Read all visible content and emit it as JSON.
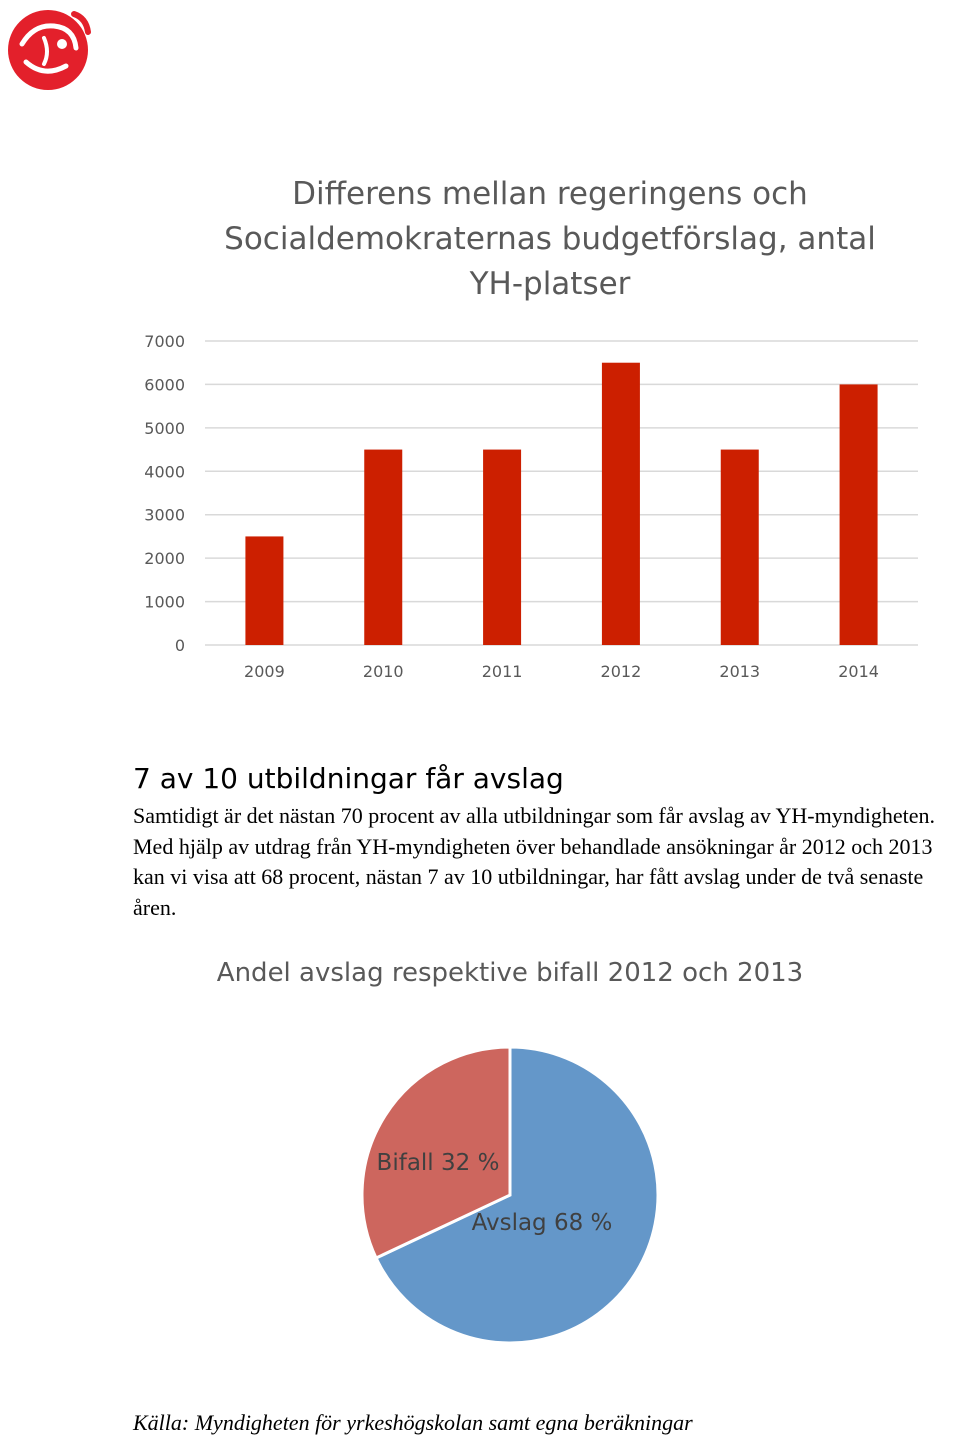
{
  "brand": {
    "logo": "rose-logo-icon",
    "logo_color": "#e3202b"
  },
  "chart_data": [
    {
      "type": "bar",
      "title": "Differens mellan regeringens och\nSocialdemokraternas budgetförslag, antal\nYH-platser",
      "categories": [
        "2009",
        "2010",
        "2011",
        "2012",
        "2013",
        "2014"
      ],
      "values": [
        2500,
        4500,
        4500,
        6500,
        4500,
        6000
      ],
      "ylim": [
        0,
        7000
      ],
      "yticks": [
        "0",
        "1000",
        "2000",
        "3000",
        "4000",
        "5000",
        "6000",
        "7000"
      ],
      "xlabel": "",
      "ylabel": "",
      "grid": true,
      "legend": "none",
      "bar_color": "#cc1f00"
    },
    {
      "type": "pie",
      "title": "Andel avslag respektive bifall 2012 och 2013",
      "slices": [
        {
          "label": "Avslag 68 %",
          "value": 68,
          "color": "#6497c9"
        },
        {
          "label": "Bifall 32 %",
          "value": 32,
          "color": "#cd665e"
        }
      ]
    }
  ],
  "section": {
    "heading": "7 av 10 utbildningar får avslag",
    "body": "Samtidigt är det nästan 70 procent av alla utbildningar som får avslag av YH-myndigheten. Med hjälp av utdrag från YH-myndigheten över behandlade ansökningar år 2012 och 2013 kan vi visa att 68 procent, nästan 7 av 10 utbildningar, har fått avslag under de två senaste åren."
  },
  "source": "Källa: Myndigheten för yrkeshögskolan samt egna beräkningar"
}
